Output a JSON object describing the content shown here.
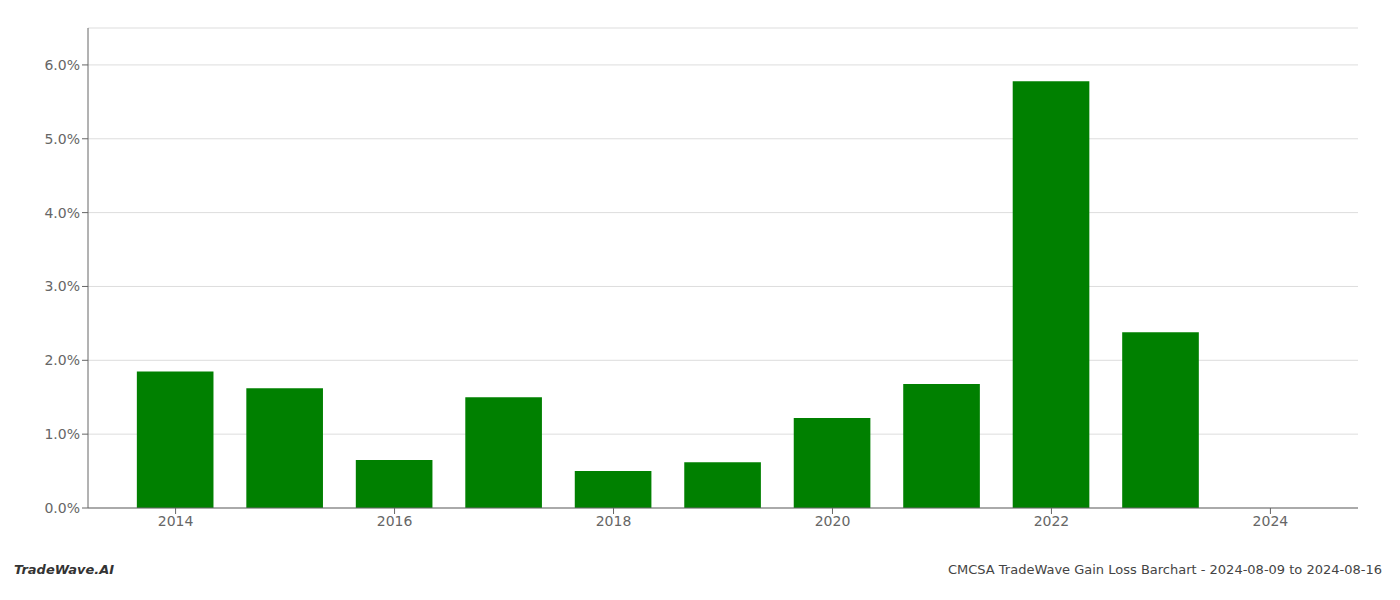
{
  "chart_data": {
    "type": "bar",
    "x": [
      2014,
      2015,
      2016,
      2017,
      2018,
      2019,
      2020,
      2021,
      2022,
      2023,
      2024
    ],
    "values": [
      0.0185,
      0.0162,
      0.0065,
      0.015,
      0.005,
      0.0062,
      0.0122,
      0.0168,
      0.0578,
      0.0238,
      0.0
    ],
    "color": "#008000",
    "xlim": [
      2013.2,
      2024.8
    ],
    "xticks": [
      2014,
      2016,
      2018,
      2020,
      2022,
      2024
    ],
    "ylim": [
      0,
      0.065
    ],
    "yticks": [
      {
        "value": 0.0,
        "label": "0.0%"
      },
      {
        "value": 0.01,
        "label": "1.0%"
      },
      {
        "value": 0.02,
        "label": "2.0%"
      },
      {
        "value": 0.03,
        "label": "3.0%"
      },
      {
        "value": 0.04,
        "label": "4.0%"
      },
      {
        "value": 0.05,
        "label": "5.0%"
      },
      {
        "value": 0.06,
        "label": "6.0%"
      }
    ],
    "grid": "y",
    "annotations": [
      "TradeWave.AI",
      "CMCSA TradeWave Gain Loss Barchart - 2024-08-09 to 2024-08-16"
    ]
  }
}
